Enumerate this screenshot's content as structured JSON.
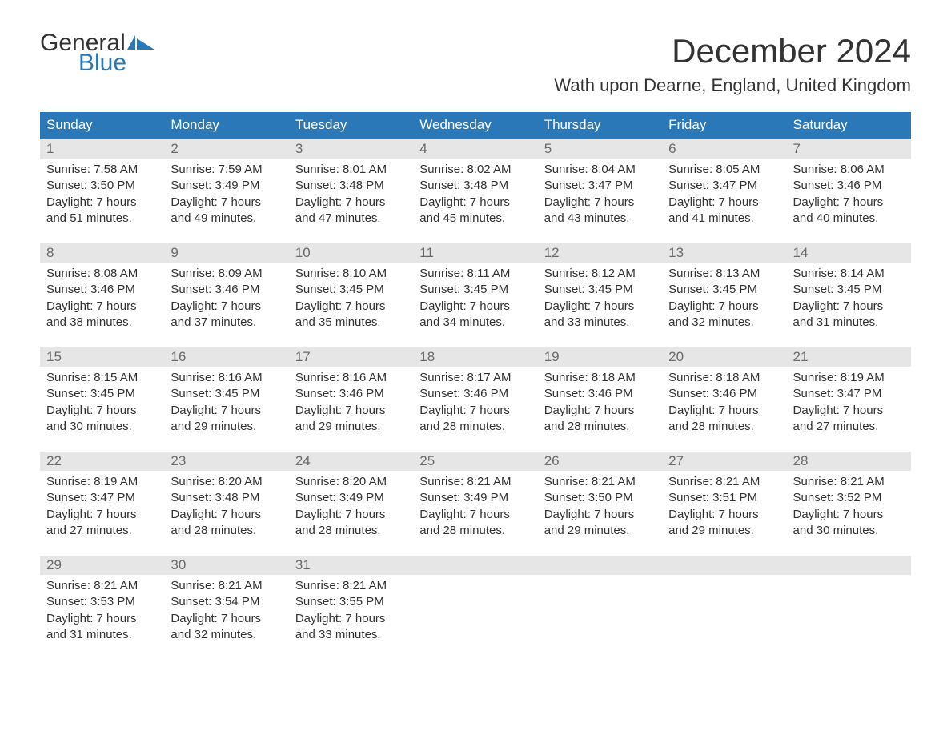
{
  "logo": {
    "line1": "General",
    "line2": "Blue",
    "icon_color": "#2a78b8"
  },
  "title": "December 2024",
  "location": "Wath upon Dearne, England, United Kingdom",
  "day_headers": [
    "Sunday",
    "Monday",
    "Tuesday",
    "Wednesday",
    "Thursday",
    "Friday",
    "Saturday"
  ],
  "colors": {
    "header_bg": "#2a78b8",
    "header_text": "#ffffff",
    "daynum_bg": "#e6e6e6",
    "daynum_text": "#6a6a6a",
    "body_text": "#333333",
    "week_border": "#2a78b8"
  },
  "weeks": [
    [
      {
        "n": "1",
        "sr": "Sunrise: 7:58 AM",
        "ss": "Sunset: 3:50 PM",
        "d1": "Daylight: 7 hours",
        "d2": "and 51 minutes."
      },
      {
        "n": "2",
        "sr": "Sunrise: 7:59 AM",
        "ss": "Sunset: 3:49 PM",
        "d1": "Daylight: 7 hours",
        "d2": "and 49 minutes."
      },
      {
        "n": "3",
        "sr": "Sunrise: 8:01 AM",
        "ss": "Sunset: 3:48 PM",
        "d1": "Daylight: 7 hours",
        "d2": "and 47 minutes."
      },
      {
        "n": "4",
        "sr": "Sunrise: 8:02 AM",
        "ss": "Sunset: 3:48 PM",
        "d1": "Daylight: 7 hours",
        "d2": "and 45 minutes."
      },
      {
        "n": "5",
        "sr": "Sunrise: 8:04 AM",
        "ss": "Sunset: 3:47 PM",
        "d1": "Daylight: 7 hours",
        "d2": "and 43 minutes."
      },
      {
        "n": "6",
        "sr": "Sunrise: 8:05 AM",
        "ss": "Sunset: 3:47 PM",
        "d1": "Daylight: 7 hours",
        "d2": "and 41 minutes."
      },
      {
        "n": "7",
        "sr": "Sunrise: 8:06 AM",
        "ss": "Sunset: 3:46 PM",
        "d1": "Daylight: 7 hours",
        "d2": "and 40 minutes."
      }
    ],
    [
      {
        "n": "8",
        "sr": "Sunrise: 8:08 AM",
        "ss": "Sunset: 3:46 PM",
        "d1": "Daylight: 7 hours",
        "d2": "and 38 minutes."
      },
      {
        "n": "9",
        "sr": "Sunrise: 8:09 AM",
        "ss": "Sunset: 3:46 PM",
        "d1": "Daylight: 7 hours",
        "d2": "and 37 minutes."
      },
      {
        "n": "10",
        "sr": "Sunrise: 8:10 AM",
        "ss": "Sunset: 3:45 PM",
        "d1": "Daylight: 7 hours",
        "d2": "and 35 minutes."
      },
      {
        "n": "11",
        "sr": "Sunrise: 8:11 AM",
        "ss": "Sunset: 3:45 PM",
        "d1": "Daylight: 7 hours",
        "d2": "and 34 minutes."
      },
      {
        "n": "12",
        "sr": "Sunrise: 8:12 AM",
        "ss": "Sunset: 3:45 PM",
        "d1": "Daylight: 7 hours",
        "d2": "and 33 minutes."
      },
      {
        "n": "13",
        "sr": "Sunrise: 8:13 AM",
        "ss": "Sunset: 3:45 PM",
        "d1": "Daylight: 7 hours",
        "d2": "and 32 minutes."
      },
      {
        "n": "14",
        "sr": "Sunrise: 8:14 AM",
        "ss": "Sunset: 3:45 PM",
        "d1": "Daylight: 7 hours",
        "d2": "and 31 minutes."
      }
    ],
    [
      {
        "n": "15",
        "sr": "Sunrise: 8:15 AM",
        "ss": "Sunset: 3:45 PM",
        "d1": "Daylight: 7 hours",
        "d2": "and 30 minutes."
      },
      {
        "n": "16",
        "sr": "Sunrise: 8:16 AM",
        "ss": "Sunset: 3:45 PM",
        "d1": "Daylight: 7 hours",
        "d2": "and 29 minutes."
      },
      {
        "n": "17",
        "sr": "Sunrise: 8:16 AM",
        "ss": "Sunset: 3:46 PM",
        "d1": "Daylight: 7 hours",
        "d2": "and 29 minutes."
      },
      {
        "n": "18",
        "sr": "Sunrise: 8:17 AM",
        "ss": "Sunset: 3:46 PM",
        "d1": "Daylight: 7 hours",
        "d2": "and 28 minutes."
      },
      {
        "n": "19",
        "sr": "Sunrise: 8:18 AM",
        "ss": "Sunset: 3:46 PM",
        "d1": "Daylight: 7 hours",
        "d2": "and 28 minutes."
      },
      {
        "n": "20",
        "sr": "Sunrise: 8:18 AM",
        "ss": "Sunset: 3:46 PM",
        "d1": "Daylight: 7 hours",
        "d2": "and 28 minutes."
      },
      {
        "n": "21",
        "sr": "Sunrise: 8:19 AM",
        "ss": "Sunset: 3:47 PM",
        "d1": "Daylight: 7 hours",
        "d2": "and 27 minutes."
      }
    ],
    [
      {
        "n": "22",
        "sr": "Sunrise: 8:19 AM",
        "ss": "Sunset: 3:47 PM",
        "d1": "Daylight: 7 hours",
        "d2": "and 27 minutes."
      },
      {
        "n": "23",
        "sr": "Sunrise: 8:20 AM",
        "ss": "Sunset: 3:48 PM",
        "d1": "Daylight: 7 hours",
        "d2": "and 28 minutes."
      },
      {
        "n": "24",
        "sr": "Sunrise: 8:20 AM",
        "ss": "Sunset: 3:49 PM",
        "d1": "Daylight: 7 hours",
        "d2": "and 28 minutes."
      },
      {
        "n": "25",
        "sr": "Sunrise: 8:21 AM",
        "ss": "Sunset: 3:49 PM",
        "d1": "Daylight: 7 hours",
        "d2": "and 28 minutes."
      },
      {
        "n": "26",
        "sr": "Sunrise: 8:21 AM",
        "ss": "Sunset: 3:50 PM",
        "d1": "Daylight: 7 hours",
        "d2": "and 29 minutes."
      },
      {
        "n": "27",
        "sr": "Sunrise: 8:21 AM",
        "ss": "Sunset: 3:51 PM",
        "d1": "Daylight: 7 hours",
        "d2": "and 29 minutes."
      },
      {
        "n": "28",
        "sr": "Sunrise: 8:21 AM",
        "ss": "Sunset: 3:52 PM",
        "d1": "Daylight: 7 hours",
        "d2": "and 30 minutes."
      }
    ],
    [
      {
        "n": "29",
        "sr": "Sunrise: 8:21 AM",
        "ss": "Sunset: 3:53 PM",
        "d1": "Daylight: 7 hours",
        "d2": "and 31 minutes."
      },
      {
        "n": "30",
        "sr": "Sunrise: 8:21 AM",
        "ss": "Sunset: 3:54 PM",
        "d1": "Daylight: 7 hours",
        "d2": "and 32 minutes."
      },
      {
        "n": "31",
        "sr": "Sunrise: 8:21 AM",
        "ss": "Sunset: 3:55 PM",
        "d1": "Daylight: 7 hours",
        "d2": "and 33 minutes."
      },
      null,
      null,
      null,
      null
    ]
  ]
}
